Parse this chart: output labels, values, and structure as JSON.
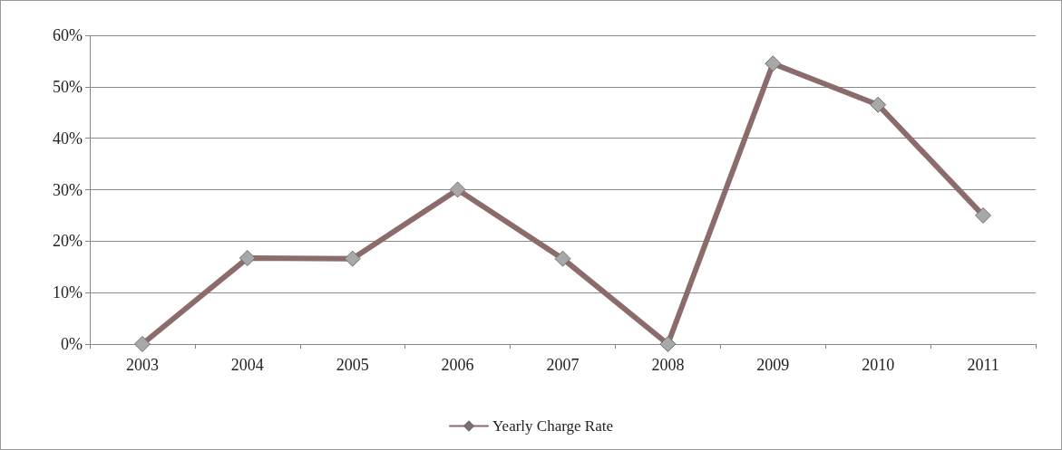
{
  "chart_data": {
    "type": "line",
    "categories": [
      "2003",
      "2004",
      "2005",
      "2006",
      "2007",
      "2008",
      "2009",
      "2010",
      "2011"
    ],
    "series": [
      {
        "name": "Yearly Charge Rate",
        "color": "#8c6b6b",
        "values": [
          0,
          16.7,
          16.6,
          30,
          16.6,
          0,
          54.5,
          46.5,
          25
        ]
      }
    ],
    "ylim": [
      0,
      60
    ],
    "yticks": [
      {
        "value": 0,
        "label": "0%"
      },
      {
        "value": 10,
        "label": "10%"
      },
      {
        "value": 20,
        "label": "20%"
      },
      {
        "value": 30,
        "label": "30%"
      },
      {
        "value": 40,
        "label": "40%"
      },
      {
        "value": 50,
        "label": "50%"
      },
      {
        "value": 60,
        "label": "60%"
      }
    ],
    "grid": "y",
    "legend": "bottom",
    "marker": "diamond",
    "line_style": "solid"
  }
}
